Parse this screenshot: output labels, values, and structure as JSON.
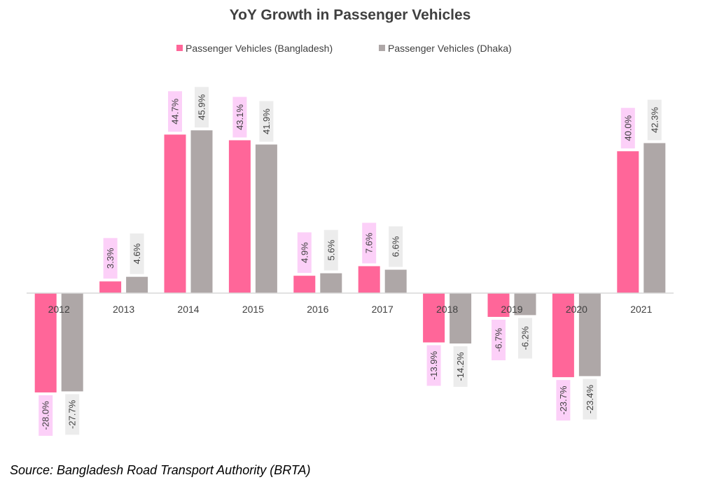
{
  "colors": {
    "bangladesh_bar": "#ff6699",
    "dhaka_bar": "#aea7a7",
    "bangladesh_label_bg": "#fcd0f8",
    "dhaka_label_bg": "#ececec",
    "axis_line": "#d9d9d9",
    "text": "#404040"
  },
  "source_note": "Source: Bangladesh Road Transport Authority (BRTA)",
  "chart_data": {
    "type": "bar",
    "title": "YoY Growth in Passenger Vehicles",
    "xlabel": "",
    "ylabel": "",
    "ylim": [
      -32,
      50
    ],
    "grid": false,
    "legend_position": "top-center",
    "categories": [
      "2012",
      "2013",
      "2014",
      "2015",
      "2016",
      "2017",
      "2018",
      "2019",
      "2020",
      "2021"
    ],
    "series": [
      {
        "name": "Passenger Vehicles (Bangladesh)",
        "values": [
          -28.0,
          3.3,
          44.7,
          43.1,
          4.9,
          7.6,
          -13.9,
          -6.7,
          -23.7,
          40.0
        ],
        "labels": [
          "-28.0%",
          "3.3%",
          "44.7%",
          "43.1%",
          "4.9%",
          "7.6%",
          "-13.9%",
          "-6.7%",
          "-23.7%",
          "40.0%"
        ]
      },
      {
        "name": "Passenger Vehicles  (Dhaka)",
        "values": [
          -27.7,
          4.6,
          45.9,
          41.9,
          5.6,
          6.6,
          -14.2,
          -6.2,
          -23.4,
          42.3
        ],
        "labels": [
          "-27.7%",
          "4.6%",
          "45.9%",
          "41.9%",
          "5.6%",
          "6.6%",
          "-14.2%",
          "-6.2%",
          "-23.4%",
          "42.3%"
        ]
      }
    ]
  }
}
